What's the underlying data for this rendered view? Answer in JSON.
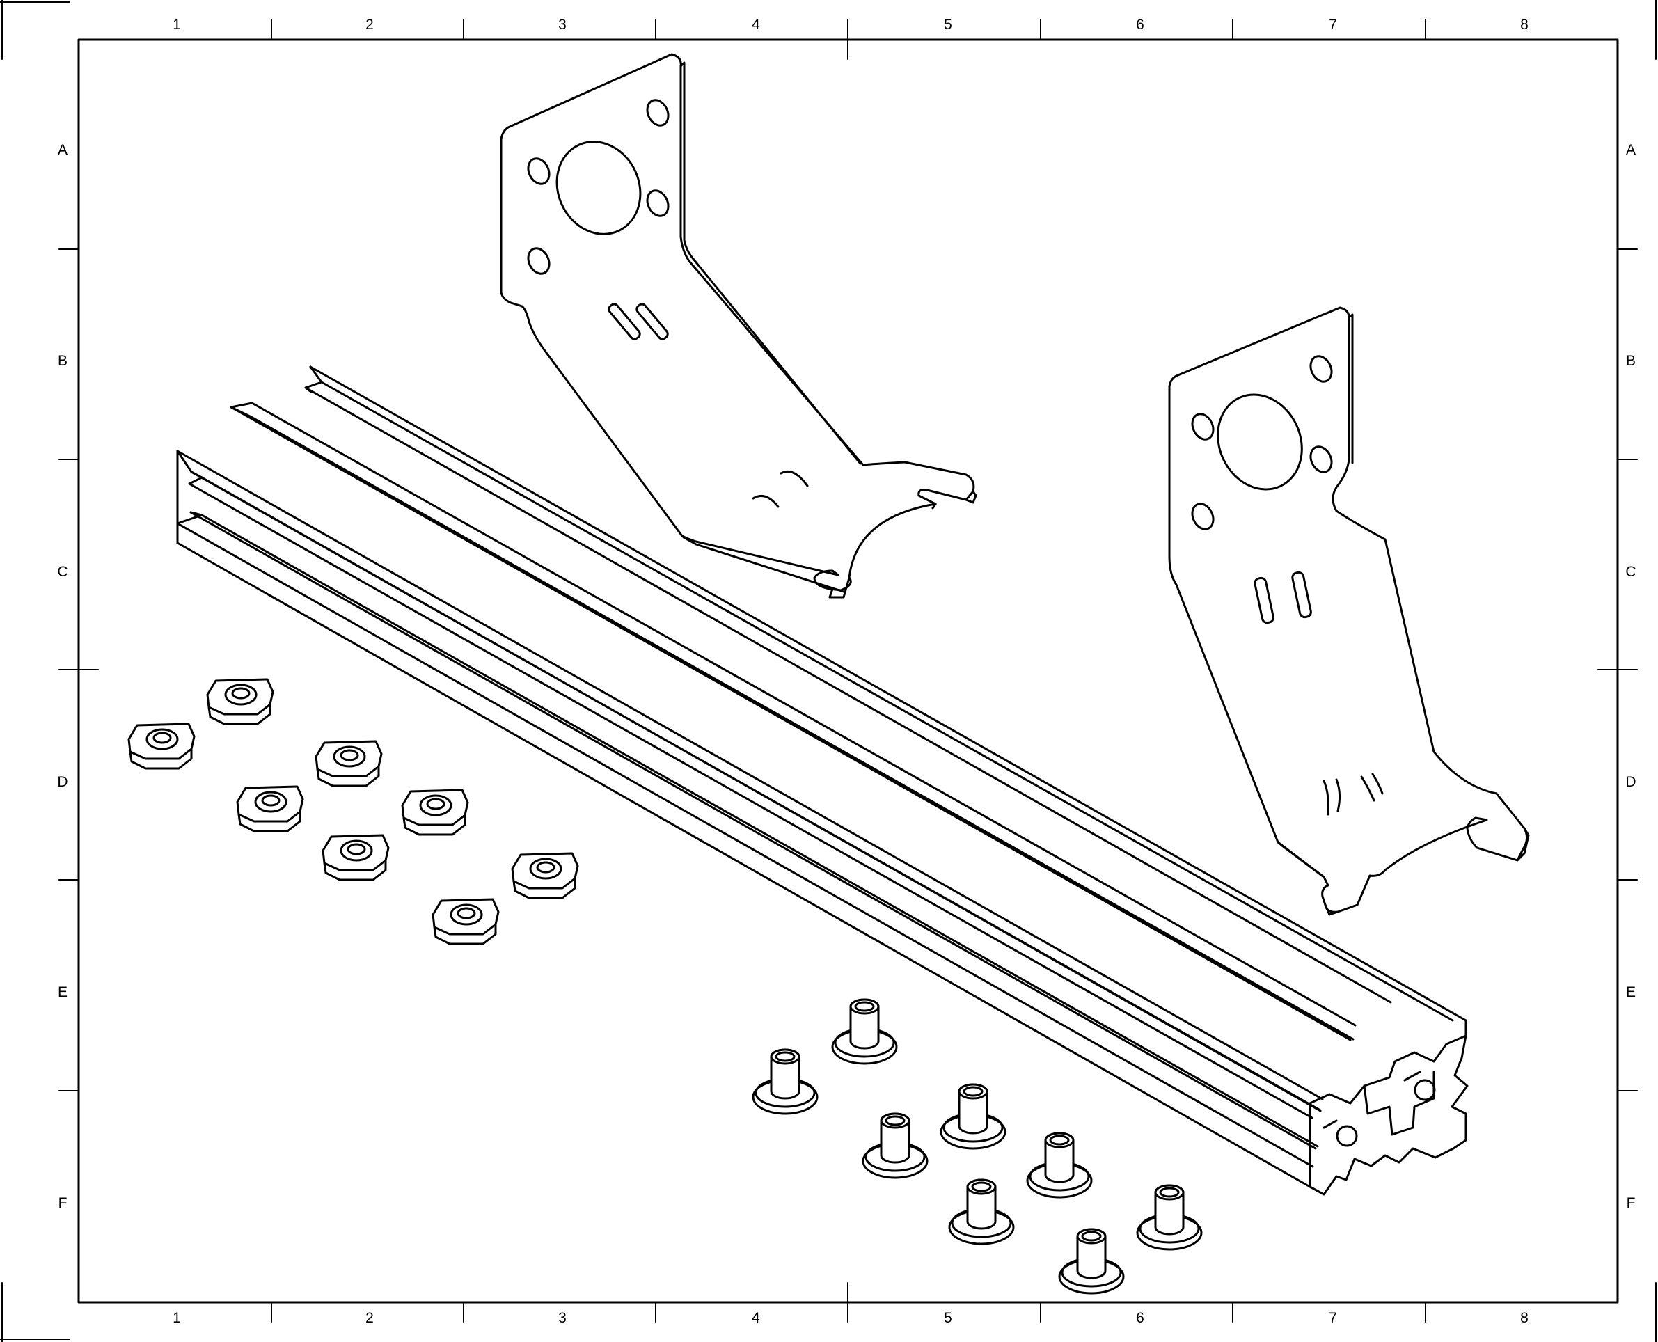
{
  "frame": {
    "column_labels": [
      "1",
      "2",
      "3",
      "4",
      "5",
      "6",
      "7",
      "8"
    ],
    "row_labels": [
      "A",
      "B",
      "C",
      "D",
      "E",
      "F"
    ]
  }
}
